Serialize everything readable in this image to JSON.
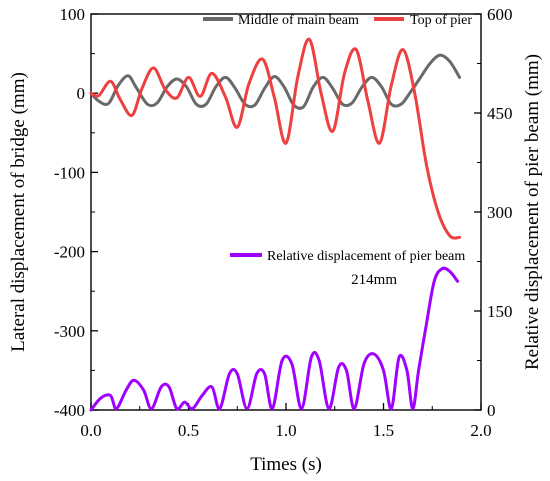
{
  "chart_data": {
    "type": "line",
    "xlabel": "Times (s)",
    "ylabel_left": "Lateral displacement of bridge (mm)",
    "ylabel_right": "Relative displacement of pier beam (mm)",
    "xlim": [
      0.0,
      2.0
    ],
    "ylim_left": [
      -400,
      100
    ],
    "ylim_right": [
      0,
      600
    ],
    "x_ticks": [
      "0.0",
      "0.5",
      "1.0",
      "1.5",
      "2.0"
    ],
    "y_left_ticks": [
      "100",
      "0",
      "-100",
      "-200",
      "-300",
      "-400"
    ],
    "y_right_ticks": [
      "600",
      "450",
      "300",
      "150",
      "0"
    ],
    "grid": false,
    "legend_top": {
      "position": "top"
    },
    "legend_bottom": {
      "position": "center-right"
    },
    "series": [
      {
        "name": "Middle of main beam",
        "axis": "left",
        "color": "#696969",
        "x": [
          0.0,
          0.04,
          0.09,
          0.14,
          0.19,
          0.23,
          0.29,
          0.34,
          0.39,
          0.44,
          0.49,
          0.54,
          0.59,
          0.64,
          0.69,
          0.74,
          0.79,
          0.84,
          0.89,
          0.94,
          0.99,
          1.04,
          1.09,
          1.14,
          1.19,
          1.24,
          1.29,
          1.34,
          1.39,
          1.44,
          1.49,
          1.54,
          1.59,
          1.64,
          1.69,
          1.74,
          1.79,
          1.84,
          1.89
        ],
        "y": [
          0,
          -10,
          -13,
          10,
          22,
          8,
          -14,
          -12,
          8,
          18,
          8,
          -14,
          -14,
          8,
          20,
          6,
          -14,
          -15,
          6,
          21,
          8,
          -15,
          -17,
          8,
          20,
          6,
          -14,
          -12,
          8,
          20,
          8,
          -14,
          -14,
          2,
          20,
          38,
          48,
          40,
          20
        ]
      },
      {
        "name": "Top of pier",
        "axis": "left",
        "color": "#ee4040",
        "x": [
          0.0,
          0.04,
          0.1,
          0.15,
          0.21,
          0.26,
          0.32,
          0.38,
          0.44,
          0.5,
          0.56,
          0.62,
          0.69,
          0.75,
          0.81,
          0.88,
          0.94,
          1.0,
          1.06,
          1.12,
          1.18,
          1.24,
          1.3,
          1.36,
          1.42,
          1.48,
          1.54,
          1.6,
          1.66,
          1.72,
          1.78,
          1.84,
          1.89
        ],
        "y": [
          0,
          -3,
          15,
          -8,
          -28,
          5,
          32,
          5,
          -6,
          20,
          -4,
          25,
          -5,
          -43,
          12,
          43,
          -5,
          -63,
          20,
          68,
          0,
          -48,
          25,
          55,
          -10,
          -63,
          10,
          55,
          0,
          -90,
          -150,
          -180,
          -182
        ]
      },
      {
        "name": "Relative displacement of pier beam",
        "axis": "right",
        "color": "#9f00ff",
        "x": [
          0.0,
          0.05,
          0.1,
          0.13,
          0.18,
          0.22,
          0.27,
          0.31,
          0.36,
          0.4,
          0.44,
          0.48,
          0.52,
          0.57,
          0.62,
          0.66,
          0.71,
          0.75,
          0.8,
          0.85,
          0.89,
          0.93,
          0.98,
          1.03,
          1.08,
          1.13,
          1.17,
          1.22,
          1.27,
          1.31,
          1.35,
          1.4,
          1.45,
          1.5,
          1.54,
          1.58,
          1.62,
          1.65,
          1.68,
          1.72,
          1.76,
          1.8,
          1.84,
          1.88
        ],
        "y": [
          0,
          18,
          22,
          2,
          30,
          45,
          30,
          2,
          35,
          35,
          2,
          12,
          2,
          22,
          35,
          2,
          55,
          55,
          2,
          55,
          55,
          2,
          75,
          70,
          2,
          80,
          75,
          2,
          65,
          60,
          2,
          70,
          85,
          60,
          2,
          80,
          60,
          2,
          60,
          130,
          195,
          214,
          210,
          195
        ]
      }
    ],
    "annotations": [
      {
        "text": "214mm",
        "x": 1.84,
        "y_right": 214
      }
    ]
  }
}
